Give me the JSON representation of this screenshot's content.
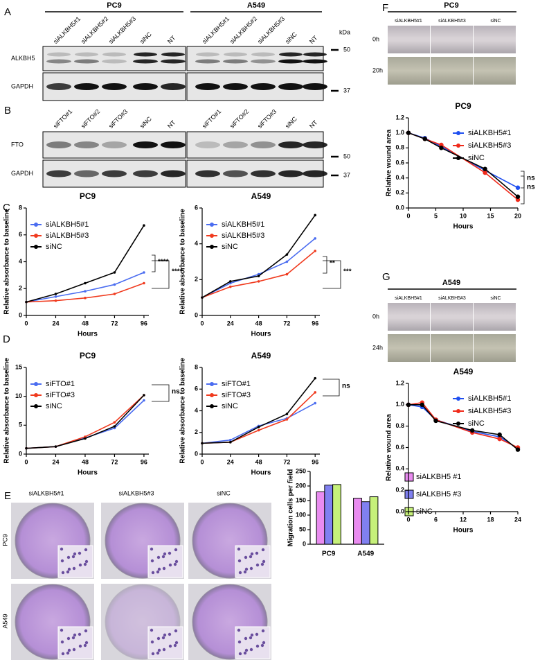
{
  "figure": {
    "panel_letters": [
      "A",
      "B",
      "C",
      "D",
      "E",
      "F",
      "G"
    ],
    "blot_A": {
      "cell_lines": [
        "PC9",
        "A549"
      ],
      "lanes": [
        "siALKBH5#1",
        "siALKBH5#2",
        "siALKBH5#3",
        "siNC",
        "NT"
      ],
      "rows": [
        "ALKBH5",
        "GAPDH"
      ],
      "kda": "kDa",
      "markers": [
        50,
        37
      ]
    },
    "blot_B": {
      "lanes": [
        "siFTO#1",
        "siFTO#2",
        "siFTO#3",
        "siNC",
        "NT"
      ],
      "rows": [
        "FTO",
        "GAPDH"
      ],
      "markers": [
        50,
        37
      ]
    },
    "transwell_E": {
      "columns": [
        "siALKBH5#1",
        "siALKBH5#3",
        "siNC"
      ],
      "rows": [
        "PC9",
        "A549"
      ]
    },
    "wound_F": {
      "title": "PC9",
      "columns": [
        "siALKBH5#1",
        "siALKBH5#3",
        "siNC"
      ],
      "times": [
        "0h",
        "20h"
      ]
    },
    "wound_G": {
      "title": "A549",
      "columns": [
        "siALKBH5#1",
        "siALKBH5#3",
        "siNC"
      ],
      "times": [
        "0h",
        "24h"
      ]
    }
  },
  "chart_data": [
    {
      "type": "line",
      "title": "PC9",
      "xlabel": "Hours",
      "ylabel": "Relative absorbance to baseline",
      "x": [
        0,
        24,
        48,
        72,
        96
      ],
      "xlim": [
        0,
        100
      ],
      "xticks": [
        0,
        24,
        48,
        72,
        96
      ],
      "ylim": [
        0,
        8
      ],
      "yticks": [
        0,
        2,
        4,
        6,
        8
      ],
      "legend": "upper left",
      "series": [
        {
          "name": "siALKBH5#1",
          "color": "#4a6cf0",
          "values": [
            1,
            1.4,
            1.8,
            2.3,
            3.2
          ]
        },
        {
          "name": "siALKBH5#3",
          "color": "#f03a1e",
          "values": [
            1,
            1.1,
            1.3,
            1.6,
            2.4
          ]
        },
        {
          "name": "siNC",
          "color": "#000000",
          "values": [
            1,
            1.6,
            2.4,
            3.2,
            6.7
          ]
        }
      ],
      "annotations": [
        "****",
        "****"
      ]
    },
    {
      "type": "line",
      "title": "A549",
      "xlabel": "Hours",
      "ylabel": "Relative absorbance to baseline",
      "x": [
        0,
        24,
        48,
        72,
        96
      ],
      "xlim": [
        0,
        100
      ],
      "xticks": [
        0,
        24,
        48,
        72,
        96
      ],
      "ylim": [
        0,
        6
      ],
      "yticks": [
        0,
        2,
        4,
        6
      ],
      "legend": "upper left",
      "series": [
        {
          "name": "siALKBH5#1",
          "color": "#4a6cf0",
          "values": [
            1,
            1.8,
            2.3,
            3,
            4.3
          ]
        },
        {
          "name": "siALKBH5#3",
          "color": "#f03a1e",
          "values": [
            1,
            1.6,
            1.9,
            2.3,
            3.6
          ]
        },
        {
          "name": "siNC",
          "color": "#000000",
          "values": [
            1,
            1.9,
            2.2,
            3.4,
            5.6
          ]
        }
      ],
      "annotations": [
        "**",
        "***"
      ]
    },
    {
      "type": "line",
      "title": "PC9",
      "xlabel": "Hours",
      "ylabel": "Relative absorbance to baseline",
      "x": [
        0,
        24,
        48,
        72,
        96
      ],
      "xlim": [
        0,
        100
      ],
      "xticks": [
        0,
        24,
        48,
        72,
        96
      ],
      "ylim": [
        0,
        15
      ],
      "yticks": [
        0,
        5,
        10,
        15
      ],
      "legend": "upper left",
      "series": [
        {
          "name": "siFTO#1",
          "color": "#4a6cf0",
          "values": [
            1,
            1.3,
            2.8,
            4.5,
            9.3
          ]
        },
        {
          "name": "siFTO#3",
          "color": "#f03a1e",
          "values": [
            1,
            1.3,
            3,
            5.5,
            10.2
          ]
        },
        {
          "name": "siNC",
          "color": "#000000",
          "values": [
            1,
            1.3,
            2.7,
            4.8,
            10.2
          ]
        }
      ],
      "annotations": [
        "ns"
      ]
    },
    {
      "type": "line",
      "title": "A549",
      "xlabel": "Hours",
      "ylabel": "Relative absorbance to baseline",
      "x": [
        0,
        24,
        48,
        72,
        96
      ],
      "xlim": [
        0,
        100
      ],
      "xticks": [
        0,
        24,
        48,
        72,
        96
      ],
      "ylim": [
        0,
        8
      ],
      "yticks": [
        0,
        2,
        4,
        6,
        8
      ],
      "legend": "upper left",
      "series": [
        {
          "name": "siFTO#1",
          "color": "#4a6cf0",
          "values": [
            1,
            1.3,
            2.6,
            3.3,
            4.7
          ]
        },
        {
          "name": "siFTO#3",
          "color": "#f03a1e",
          "values": [
            1,
            1.1,
            2.2,
            3.2,
            5.7
          ]
        },
        {
          "name": "siNC",
          "color": "#000000",
          "values": [
            1,
            1.1,
            2.5,
            3.7,
            7
          ]
        }
      ],
      "annotations": [
        "ns"
      ]
    },
    {
      "type": "bar",
      "ylabel": "Migration cells per field",
      "categories": [
        "PC9",
        "A549"
      ],
      "ylim": [
        0,
        250
      ],
      "yticks": [
        0,
        50,
        100,
        150,
        200,
        250
      ],
      "legend": "right",
      "series": [
        {
          "name": "siALKBH5 #1",
          "color": "#e98cf0",
          "values": [
            180,
            158
          ]
        },
        {
          "name": "siALKBH5 #3",
          "color": "#8080f0",
          "values": [
            203,
            146
          ]
        },
        {
          "name": "siNC",
          "color": "#c6f07a",
          "values": [
            205,
            163
          ]
        }
      ]
    },
    {
      "type": "line",
      "title": "PC9",
      "xlabel": "Hours",
      "ylabel": "Relative wound area",
      "x": [
        0,
        3,
        6,
        14,
        20
      ],
      "xlim": [
        0,
        20
      ],
      "xticks": [
        0,
        5,
        10,
        15,
        20
      ],
      "ylim": [
        0,
        1.2
      ],
      "yticks": [
        {
          "value": 0,
          "label": "0.0"
        },
        0.2,
        0.4,
        0.6,
        0.8,
        {
          "value": 1,
          "label": "1.0"
        },
        1.2
      ],
      "legend": "upper right",
      "series": [
        {
          "name": "siALKBH5#1",
          "color": "#1f4ff0",
          "values": [
            1,
            0.93,
            0.82,
            0.5,
            0.27
          ]
        },
        {
          "name": "siALKBH5#3",
          "color": "#f02a1a",
          "values": [
            1,
            0.92,
            0.84,
            0.47,
            0.11
          ]
        },
        {
          "name": "siNC",
          "color": "#000000",
          "values": [
            1,
            0.92,
            0.8,
            0.52,
            0.15
          ]
        }
      ],
      "annotations": [
        "ns",
        "ns"
      ]
    },
    {
      "type": "line",
      "title": "A549",
      "xlabel": "Hours",
      "ylabel": "Relative wound area",
      "x": [
        0,
        3,
        6,
        14,
        20,
        24
      ],
      "xlim": [
        0,
        24
      ],
      "xticks": [
        0,
        6,
        12,
        18,
        24
      ],
      "ylim": [
        0,
        1.2
      ],
      "yticks": [
        {
          "value": 0,
          "label": "0.0"
        },
        0.2,
        0.4,
        0.6,
        0.8,
        {
          "value": 1,
          "label": "1.0"
        },
        1.2
      ],
      "legend": "upper right",
      "series": [
        {
          "name": "siALKBH5#1",
          "color": "#1f4ff0",
          "values": [
            1,
            0.98,
            0.86,
            0.75,
            0.7,
            0.59
          ]
        },
        {
          "name": "siALKBH5#3",
          "color": "#f02a1a",
          "values": [
            1,
            1.02,
            0.86,
            0.74,
            0.68,
            0.6
          ]
        },
        {
          "name": "siNC",
          "color": "#000000",
          "values": [
            1,
            1,
            0.85,
            0.76,
            0.72,
            0.58
          ]
        }
      ]
    }
  ]
}
